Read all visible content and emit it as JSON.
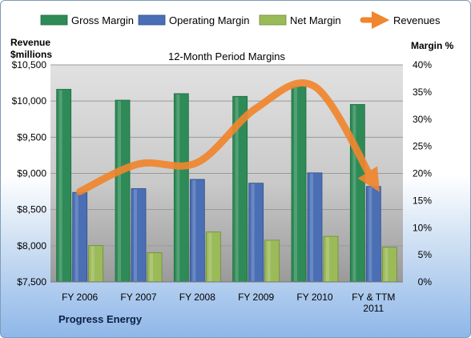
{
  "chart_data": {
    "type": "bar",
    "title": "12-Month Period Margins",
    "ylabel_left": [
      "Revenue",
      "$millions"
    ],
    "ylabel_right": "Margin %",
    "footer": "Progress Energy",
    "categories": [
      [
        "FY 2006"
      ],
      [
        "FY 2007"
      ],
      [
        "FY 2008"
      ],
      [
        "FY 2009"
      ],
      [
        "FY 2010"
      ],
      [
        "FY & TTM",
        "2011"
      ]
    ],
    "y_left": {
      "min": 7500,
      "max": 10500,
      "ticks": [
        "$7,500",
        "$8,000",
        "$8,500",
        "$9,000",
        "$9,500",
        "$10,000",
        "$10,500"
      ]
    },
    "y_right": {
      "min": 0,
      "max": 40,
      "ticks": [
        "0%",
        "5%",
        "10%",
        "15%",
        "20%",
        "25%",
        "30%",
        "35%",
        "40%"
      ]
    },
    "series": [
      {
        "name": "Gross Margin",
        "axis": "right",
        "kind": "bar",
        "color": "#2e8b57",
        "values": [
          35.5,
          33.5,
          34.7,
          34.2,
          36.0,
          32.7
        ]
      },
      {
        "name": "Operating Margin",
        "axis": "right",
        "kind": "bar",
        "color": "#4a6fb5",
        "values": [
          16.5,
          17.2,
          18.9,
          18.2,
          20.1,
          17.6
        ]
      },
      {
        "name": "Net Margin",
        "axis": "right",
        "kind": "bar",
        "color": "#9bbb59",
        "values": [
          6.7,
          5.4,
          9.2,
          7.7,
          8.4,
          6.4
        ]
      },
      {
        "name": "Revenues",
        "axis": "left",
        "kind": "line",
        "color": "#f0862e",
        "values": [
          8750,
          9130,
          9150,
          9900,
          10200,
          8880
        ]
      }
    ],
    "grid": true,
    "legend": "top"
  }
}
